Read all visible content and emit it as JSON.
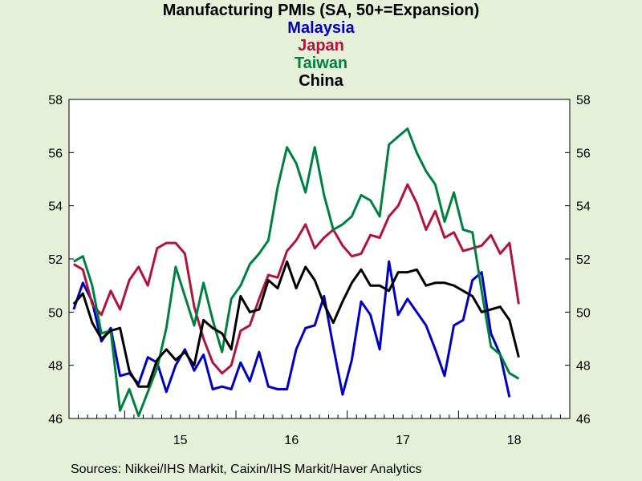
{
  "chart_data": {
    "type": "line",
    "title": "Manufacturing PMIs (SA, 50+=Expansion)",
    "x_start": "2014-07",
    "x_end": "2018-12",
    "x_tick_labels": [
      "15",
      "16",
      "17",
      "18"
    ],
    "ylim": [
      46,
      58
    ],
    "y_ticks": [
      46,
      48,
      50,
      52,
      54,
      56,
      58
    ],
    "grid": false,
    "series": [
      {
        "name": "Malaysia",
        "color": "#0000c0",
        "values": [
          50.1,
          51.1,
          50.4,
          48.9,
          49.4,
          47.6,
          47.7,
          47.3,
          48.3,
          48.1,
          47.0,
          48.0,
          48.6,
          47.8,
          48.4,
          47.1,
          47.2,
          47.1,
          48.1,
          47.4,
          48.5,
          47.2,
          47.1,
          47.1,
          48.6,
          49.4,
          49.5,
          50.6,
          48.7,
          46.9,
          48.2,
          50.4,
          49.9,
          48.6,
          51.9,
          49.9,
          50.5,
          50.0,
          49.5,
          48.6,
          47.6,
          49.5,
          49.7,
          51.2,
          51.5,
          49.2,
          48.4,
          46.8
        ],
        "start": "2014-07"
      },
      {
        "name": "Japan",
        "color": "#b0133c",
        "values": [
          51.8,
          51.6,
          50.3,
          49.9,
          50.8,
          50.1,
          51.2,
          51.7,
          51.0,
          52.4,
          52.6,
          52.6,
          52.2,
          50.2,
          49.0,
          48.1,
          47.7,
          48.0,
          49.3,
          49.5,
          50.5,
          51.4,
          51.3,
          52.3,
          52.7,
          53.3,
          52.4,
          52.8,
          53.1,
          52.5,
          52.1,
          52.2,
          52.9,
          52.8,
          53.6,
          54.0,
          54.8,
          54.1,
          53.1,
          53.8,
          52.8,
          53.0,
          52.3,
          52.4,
          52.5,
          52.9,
          52.2,
          52.6,
          50.3
        ],
        "start": "2014-07"
      },
      {
        "name": "Taiwan",
        "color": "#008040",
        "values": [
          51.9,
          52.1,
          51.0,
          49.2,
          49.3,
          46.3,
          47.1,
          46.1,
          47.0,
          47.9,
          49.4,
          51.7,
          50.6,
          49.5,
          51.1,
          49.7,
          48.5,
          50.5,
          51.0,
          51.8,
          52.2,
          52.7,
          54.7,
          56.2,
          55.6,
          54.5,
          56.2,
          54.4,
          53.1,
          53.3,
          53.6,
          54.4,
          54.2,
          53.6,
          56.3,
          56.6,
          56.9,
          56.0,
          55.3,
          54.8,
          53.4,
          54.5,
          53.1,
          53.0,
          50.8,
          48.7,
          48.4,
          47.7,
          47.5
        ],
        "start": "2014-07"
      },
      {
        "name": "China",
        "color": "#000000",
        "values": [
          50.3,
          50.7,
          49.6,
          49.0,
          49.3,
          49.4,
          47.8,
          47.2,
          47.2,
          48.2,
          48.6,
          48.2,
          48.5,
          48.0,
          49.7,
          49.4,
          49.2,
          48.6,
          50.6,
          50.0,
          50.1,
          51.2,
          50.9,
          51.9,
          50.9,
          51.7,
          51.2,
          50.3,
          49.6,
          50.4,
          51.1,
          51.6,
          51.0,
          51.0,
          50.8,
          51.5,
          51.5,
          51.6,
          51.0,
          51.1,
          51.1,
          51.0,
          50.8,
          50.6,
          50.0,
          50.1,
          50.2,
          49.7,
          48.3
        ],
        "start": "2014-07"
      }
    ]
  },
  "footer": {
    "source": "Sources:  Nikkei/IHS Markit, Caixin/IHS Markit/Haver Analytics"
  }
}
